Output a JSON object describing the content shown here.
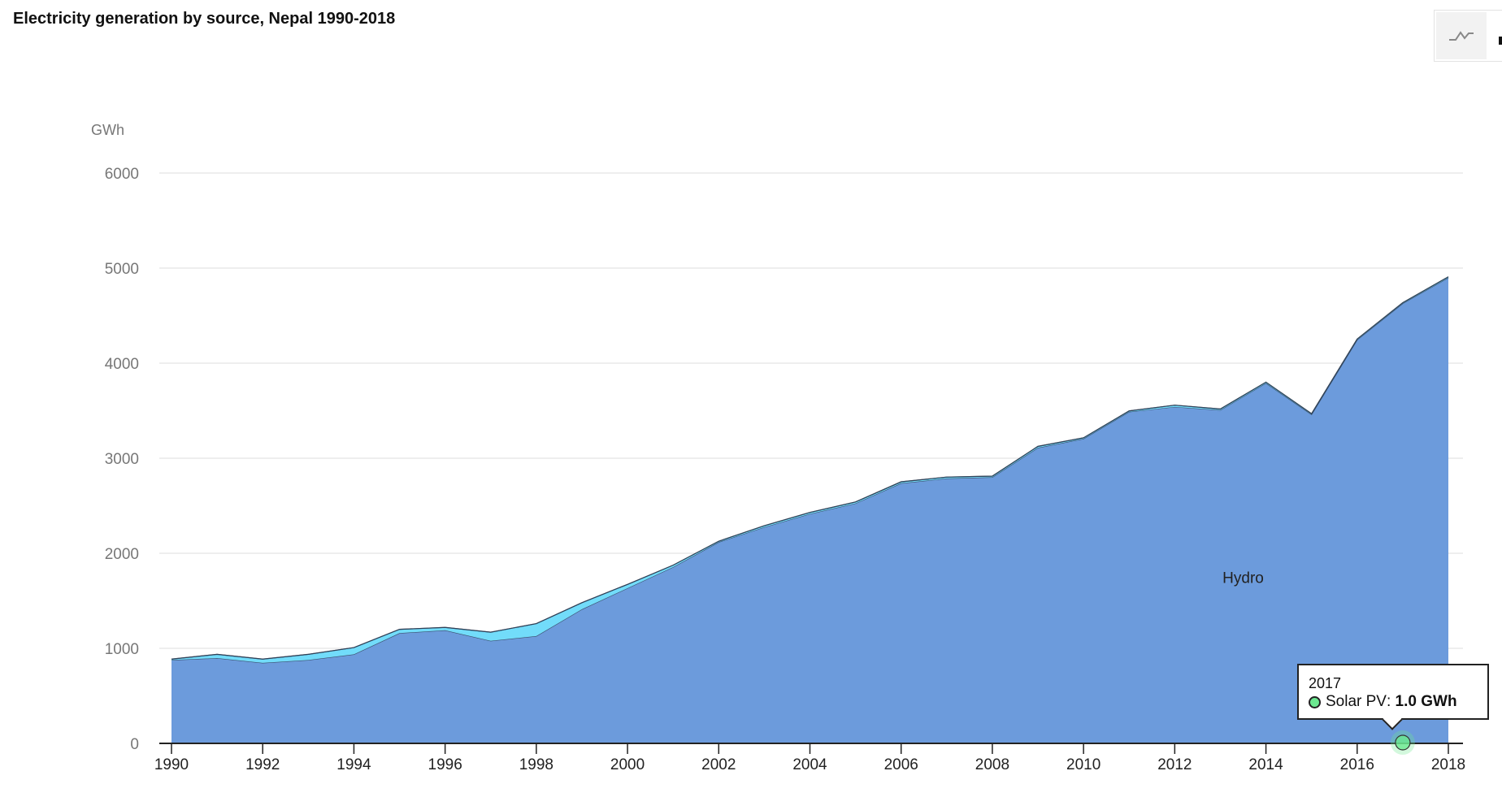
{
  "title": "Electricity generation by source, Nepal 1990-2018",
  "toolbar": {
    "chart_type_icon": "line-chart-icon"
  },
  "tooltip": {
    "year": "2017",
    "series": "Solar PV",
    "separator": ":",
    "value": "1.0 GWh",
    "color": "#6ce890"
  },
  "chart_data": {
    "type": "area",
    "stacked": true,
    "title": "Electricity generation by source, Nepal 1990-2018",
    "ylabel": "GWh",
    "xlabel": "",
    "ylim": [
      0,
      6000
    ],
    "yticks": [
      "0",
      "1000",
      "2000",
      "3000",
      "4000",
      "5000",
      "6000"
    ],
    "xticks": [
      "1990",
      "1992",
      "1994",
      "1996",
      "1998",
      "2000",
      "2002",
      "2004",
      "2006",
      "2008",
      "2010",
      "2012",
      "2014",
      "2016",
      "2018"
    ],
    "grid": true,
    "x": [
      1990,
      1991,
      1992,
      1993,
      1994,
      1995,
      1996,
      1997,
      1998,
      1999,
      2000,
      2001,
      2002,
      2003,
      2004,
      2005,
      2006,
      2007,
      2008,
      2009,
      2010,
      2011,
      2012,
      2013,
      2014,
      2015,
      2016,
      2017,
      2018
    ],
    "series": [
      {
        "name": "Hydro",
        "color": "#6c9bdc",
        "values": [
          877,
          897,
          847,
          877,
          937,
          1160,
          1190,
          1079,
          1129,
          1411,
          1633,
          1855,
          2117,
          2275,
          2415,
          2525,
          2737,
          2787,
          2800,
          3110,
          3205,
          3488,
          3540,
          3506,
          3790,
          3460,
          4245,
          4628,
          4898
        ]
      },
      {
        "color": "#72dcfa",
        "values": [
          10,
          40,
          40,
          60,
          71,
          40,
          30,
          91,
          131,
          69,
          40,
          20,
          10,
          15,
          15,
          15,
          15,
          15,
          12,
          15,
          10,
          10,
          18,
          12,
          10,
          8,
          8,
          8,
          10
        ]
      },
      {
        "name": "Solar PV",
        "color": "#6ce890",
        "values": [
          0,
          0,
          0,
          0,
          0,
          0,
          0,
          0,
          0,
          0,
          0,
          0,
          0,
          0,
          0,
          0,
          0,
          0,
          0,
          0,
          0,
          0,
          0,
          0,
          1,
          1,
          1,
          1.0,
          1
        ]
      }
    ],
    "annotations": [
      {
        "text": "Hydro",
        "x": 2013.5,
        "y": 1750
      }
    ]
  }
}
